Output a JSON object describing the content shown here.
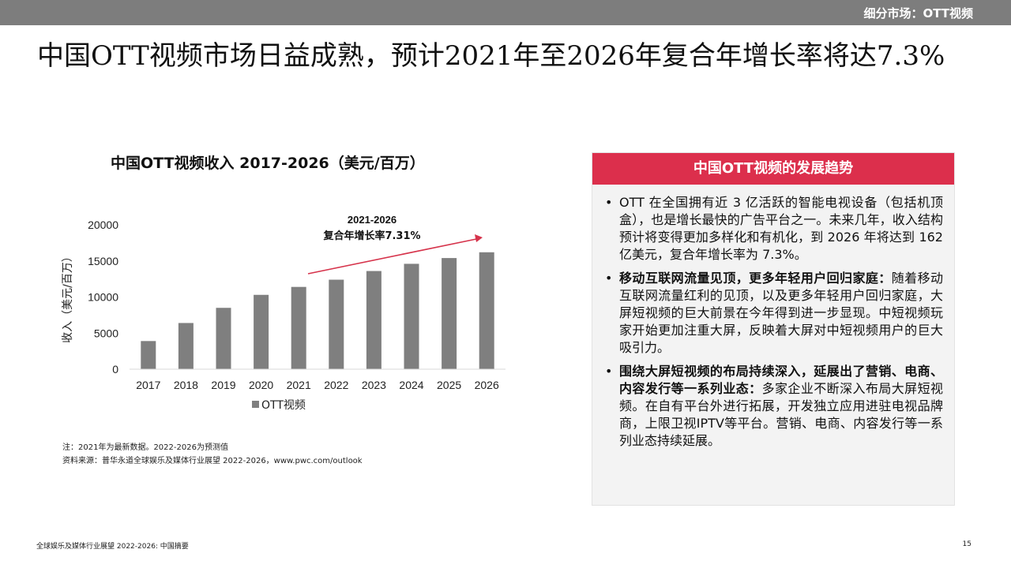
{
  "header": {
    "section_label": "细分市场：OTT视频"
  },
  "headline": "中国OTT视频市场日益成熟，预计2021年至2026年复合年增长率将达7.3%",
  "chart_data": {
    "type": "bar",
    "title": "中国OTT视频收入 2017-2026（美元/百万）",
    "categories": [
      "2017",
      "2018",
      "2019",
      "2020",
      "2021",
      "2022",
      "2023",
      "2024",
      "2025",
      "2026"
    ],
    "series": [
      {
        "name": "OTT视频",
        "values": [
          3900,
          6400,
          8500,
          10300,
          11400,
          12400,
          13600,
          14600,
          15400,
          16200
        ]
      }
    ],
    "ylabel": "收入（美元/百万）",
    "ylim": [
      0,
      20000
    ],
    "yticks": [
      "0",
      "5000",
      "10000",
      "15000",
      "20000"
    ],
    "bar_color": "#7f7f7f",
    "grid": false,
    "legend": "bottom",
    "annotation": {
      "line1": "2021-2026",
      "line2": "复合年增长率7.31%",
      "arrow_color": "#d6334b"
    }
  },
  "notes": {
    "note": "注：2021年为最新数据。2022-2026为预测值",
    "source": "资料来源：普华永道全球娱乐及媒体行业展望 2022-2026，www.pwc.com/outlook"
  },
  "panel": {
    "title": "中国OTT视频的发展趋势",
    "accent": "#dc2f4c",
    "bullets": [
      {
        "bold": "",
        "text": "OTT 在全国拥有近 3 亿活跃的智能电视设备（包括机顶盒），也是增长最快的广告平台之一。未来几年，收入结构预计将变得更加多样化和有机化，到 2026 年将达到 162 亿美元，复合年增长率为 7.3%。"
      },
      {
        "bold": "移动互联网流量见顶，更多年轻用户回归家庭：",
        "text": "随着移动互联网流量红利的见顶，以及更多年轻用户回归家庭，大屏短视频的巨大前景在今年得到进一步显现。中短视频玩家开始更加注重大屏，反映着大屏对中短视频用户的巨大吸引力。"
      },
      {
        "bold": "围绕大屏短视频的布局持续深入，延展出了营销、电商、内容发行等一系列业态：",
        "text": "多家企业不断深入布局大屏短视频。在自有平台外进行拓展，开发独立应用进驻电视品牌商，上限卫视IPTV等平台。营销、电商、内容发行等一系列业态持续延展。"
      }
    ]
  },
  "footer": {
    "left": "全球娱乐及媒体行业展望 2022-2026: 中国摘要",
    "page": "15"
  }
}
